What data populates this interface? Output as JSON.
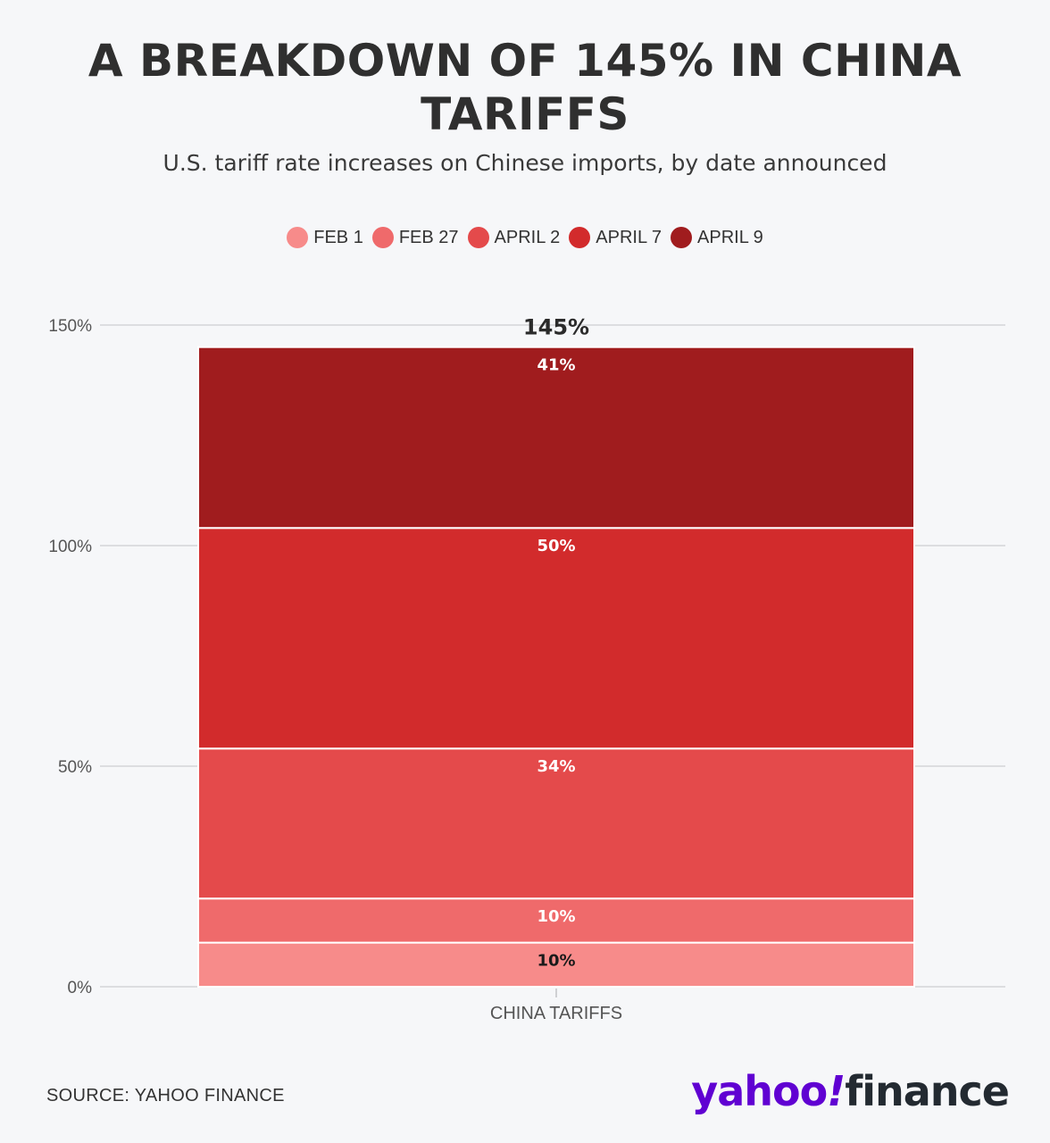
{
  "title": "A BREAKDOWN OF 145% IN CHINA TARIFFS",
  "subtitle": "U.S. tariff rate increases on Chinese imports, by date announced",
  "source": "SOURCE: YAHOO FINANCE",
  "logo": {
    "yahoo": "yahoo",
    "bang": "!",
    "finance": "finance"
  },
  "colors": {
    "FEB 1": "#f78b8a",
    "FEB 27": "#ef6a6b",
    "APRIL 2": "#e44a4b",
    "APRIL 7": "#d22b2c",
    "APRIL 9": "#a01c1e",
    "logo_purple": "#6001d2"
  },
  "chart_data": {
    "type": "bar",
    "stacked": true,
    "categories": [
      "CHINA TARIFFS"
    ],
    "series": [
      {
        "name": "FEB 1",
        "values": [
          10
        ],
        "label": "10%"
      },
      {
        "name": "FEB 27",
        "values": [
          10
        ],
        "label": "10%"
      },
      {
        "name": "APRIL 2",
        "values": [
          34
        ],
        "label": "34%"
      },
      {
        "name": "APRIL 7",
        "values": [
          50
        ],
        "label": "50%"
      },
      {
        "name": "APRIL 9",
        "values": [
          41
        ],
        "label": "41%"
      }
    ],
    "total_label": "145%",
    "title": "A BREAKDOWN OF 145% IN CHINA TARIFFS",
    "subtitle": "U.S. tariff rate increases on Chinese imports, by date announced",
    "xlabel": "",
    "ylabel": "",
    "ylim": [
      0,
      150
    ],
    "yticks": [
      0,
      50,
      100,
      150
    ],
    "ytick_labels": [
      "0%",
      "50%",
      "100%",
      "150%"
    ],
    "grid": true,
    "legend_position": "top"
  }
}
